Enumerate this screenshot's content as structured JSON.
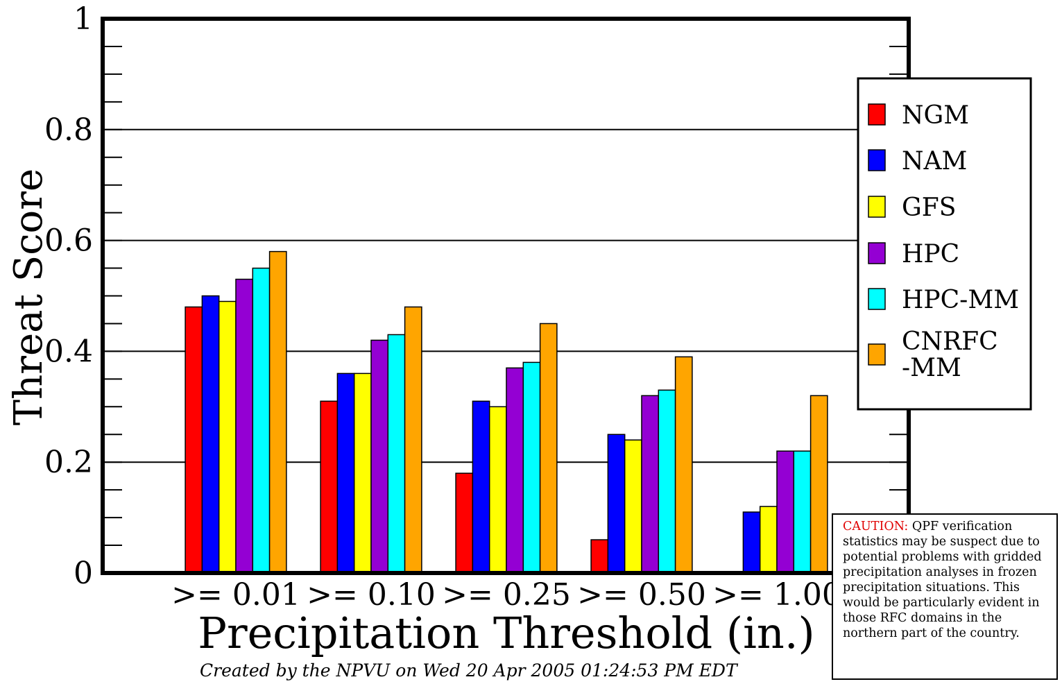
{
  "chart_data": {
    "type": "bar",
    "categories": [
      ">= 0.01",
      ">= 0.10",
      ">= 0.25",
      ">= 0.50",
      ">= 1.00"
    ],
    "series": [
      {
        "name": "NGM",
        "color": "#ff0000",
        "values": [
          0.48,
          0.31,
          0.18,
          0.06,
          null
        ]
      },
      {
        "name": "NAM",
        "color": "#0000ff",
        "values": [
          0.5,
          0.36,
          0.31,
          0.25,
          0.11
        ]
      },
      {
        "name": "GFS",
        "color": "#ffff00",
        "values": [
          0.49,
          0.36,
          0.3,
          0.24,
          0.12
        ]
      },
      {
        "name": "HPC",
        "color": "#9400d3",
        "values": [
          0.53,
          0.42,
          0.37,
          0.32,
          0.22
        ]
      },
      {
        "name": "HPC-MM",
        "color": "#00ffff",
        "values": [
          0.55,
          0.43,
          0.38,
          0.33,
          0.22
        ]
      },
      {
        "name": "CNRFC\n-MM",
        "color": "#ffa500",
        "values": [
          0.58,
          0.48,
          0.45,
          0.39,
          0.32
        ]
      }
    ],
    "title": "",
    "xlabel": "Precipitation Threshold (in.)",
    "ylabel": "Threat Score",
    "ylim": [
      0,
      1
    ],
    "yticks": [
      0,
      0.2,
      0.4,
      0.6,
      0.8,
      1
    ],
    "ytick_labels": [
      "0",
      "0.2",
      "0.4",
      "0.6",
      "0.8",
      "1"
    ],
    "grid": "horizontal at major ticks",
    "legend_position": "right"
  },
  "footer": "Created by  the NPVU on Wed 20 Apr 2005 01:24:53 PM EDT",
  "caution": {
    "label": "CAUTION:",
    "text": " QPF verification statistics may be suspect due to potential problems with gridded precipitation analyses in frozen precipitation situations. This would be particularly evident in those RFC domains in the northern part of the country."
  }
}
